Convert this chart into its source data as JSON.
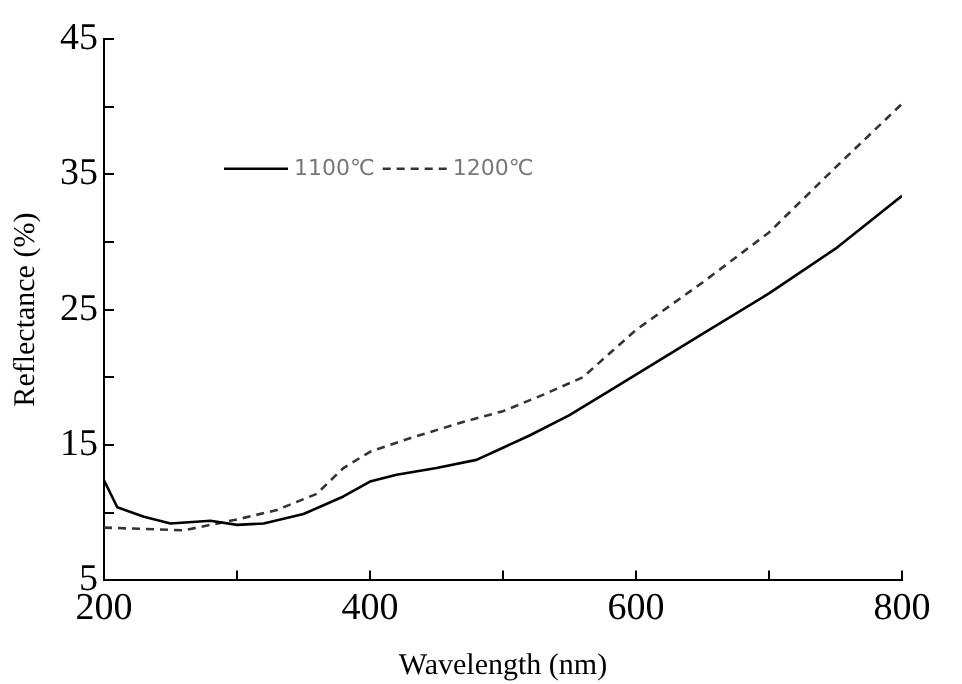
{
  "chart_data": {
    "type": "line",
    "xlabel": "Wavelength (nm)",
    "ylabel": "Reflectance (%)",
    "xlim": [
      200,
      800
    ],
    "xticks": [
      200,
      {
        "value": 300,
        "label": null
      },
      400,
      {
        "value": 500,
        "label": null
      },
      600,
      {
        "value": 700,
        "label": null
      },
      800
    ],
    "ylim": [
      5,
      45
    ],
    "yticks": [
      5,
      {
        "value": 10,
        "label": null
      },
      15,
      {
        "value": 20,
        "label": null
      },
      25,
      {
        "value": 30,
        "label": null
      },
      35,
      {
        "value": 40,
        "label": null
      },
      45
    ],
    "grid": false,
    "legend": "top left",
    "marker": "none",
    "series": [
      {
        "name": "1100℃",
        "color": "#000000",
        "line_style": "solid",
        "x": [
          200,
          210,
          230,
          250,
          280,
          300,
          320,
          350,
          380,
          400,
          420,
          450,
          480,
          500,
          520,
          550,
          580,
          600,
          650,
          700,
          750,
          800
        ],
        "values": [
          12.4,
          10.4,
          9.7,
          9.2,
          9.4,
          9.1,
          9.2,
          9.9,
          11.2,
          12.3,
          12.8,
          13.3,
          13.9,
          14.8,
          15.7,
          17.2,
          19.0,
          20.2,
          23.2,
          26.2,
          29.5,
          33.4
        ]
      },
      {
        "name": "1200℃",
        "color": "#333333",
        "line_style": "dashed",
        "x": [
          200,
          230,
          260,
          300,
          330,
          360,
          380,
          400,
          430,
          470,
          500,
          530,
          560,
          600,
          650,
          700,
          750,
          800
        ],
        "values": [
          8.9,
          8.8,
          8.7,
          9.5,
          10.2,
          11.4,
          13.3,
          14.5,
          15.5,
          16.7,
          17.5,
          18.7,
          20.0,
          23.5,
          27.0,
          30.7,
          35.5,
          40.2
        ]
      }
    ]
  }
}
